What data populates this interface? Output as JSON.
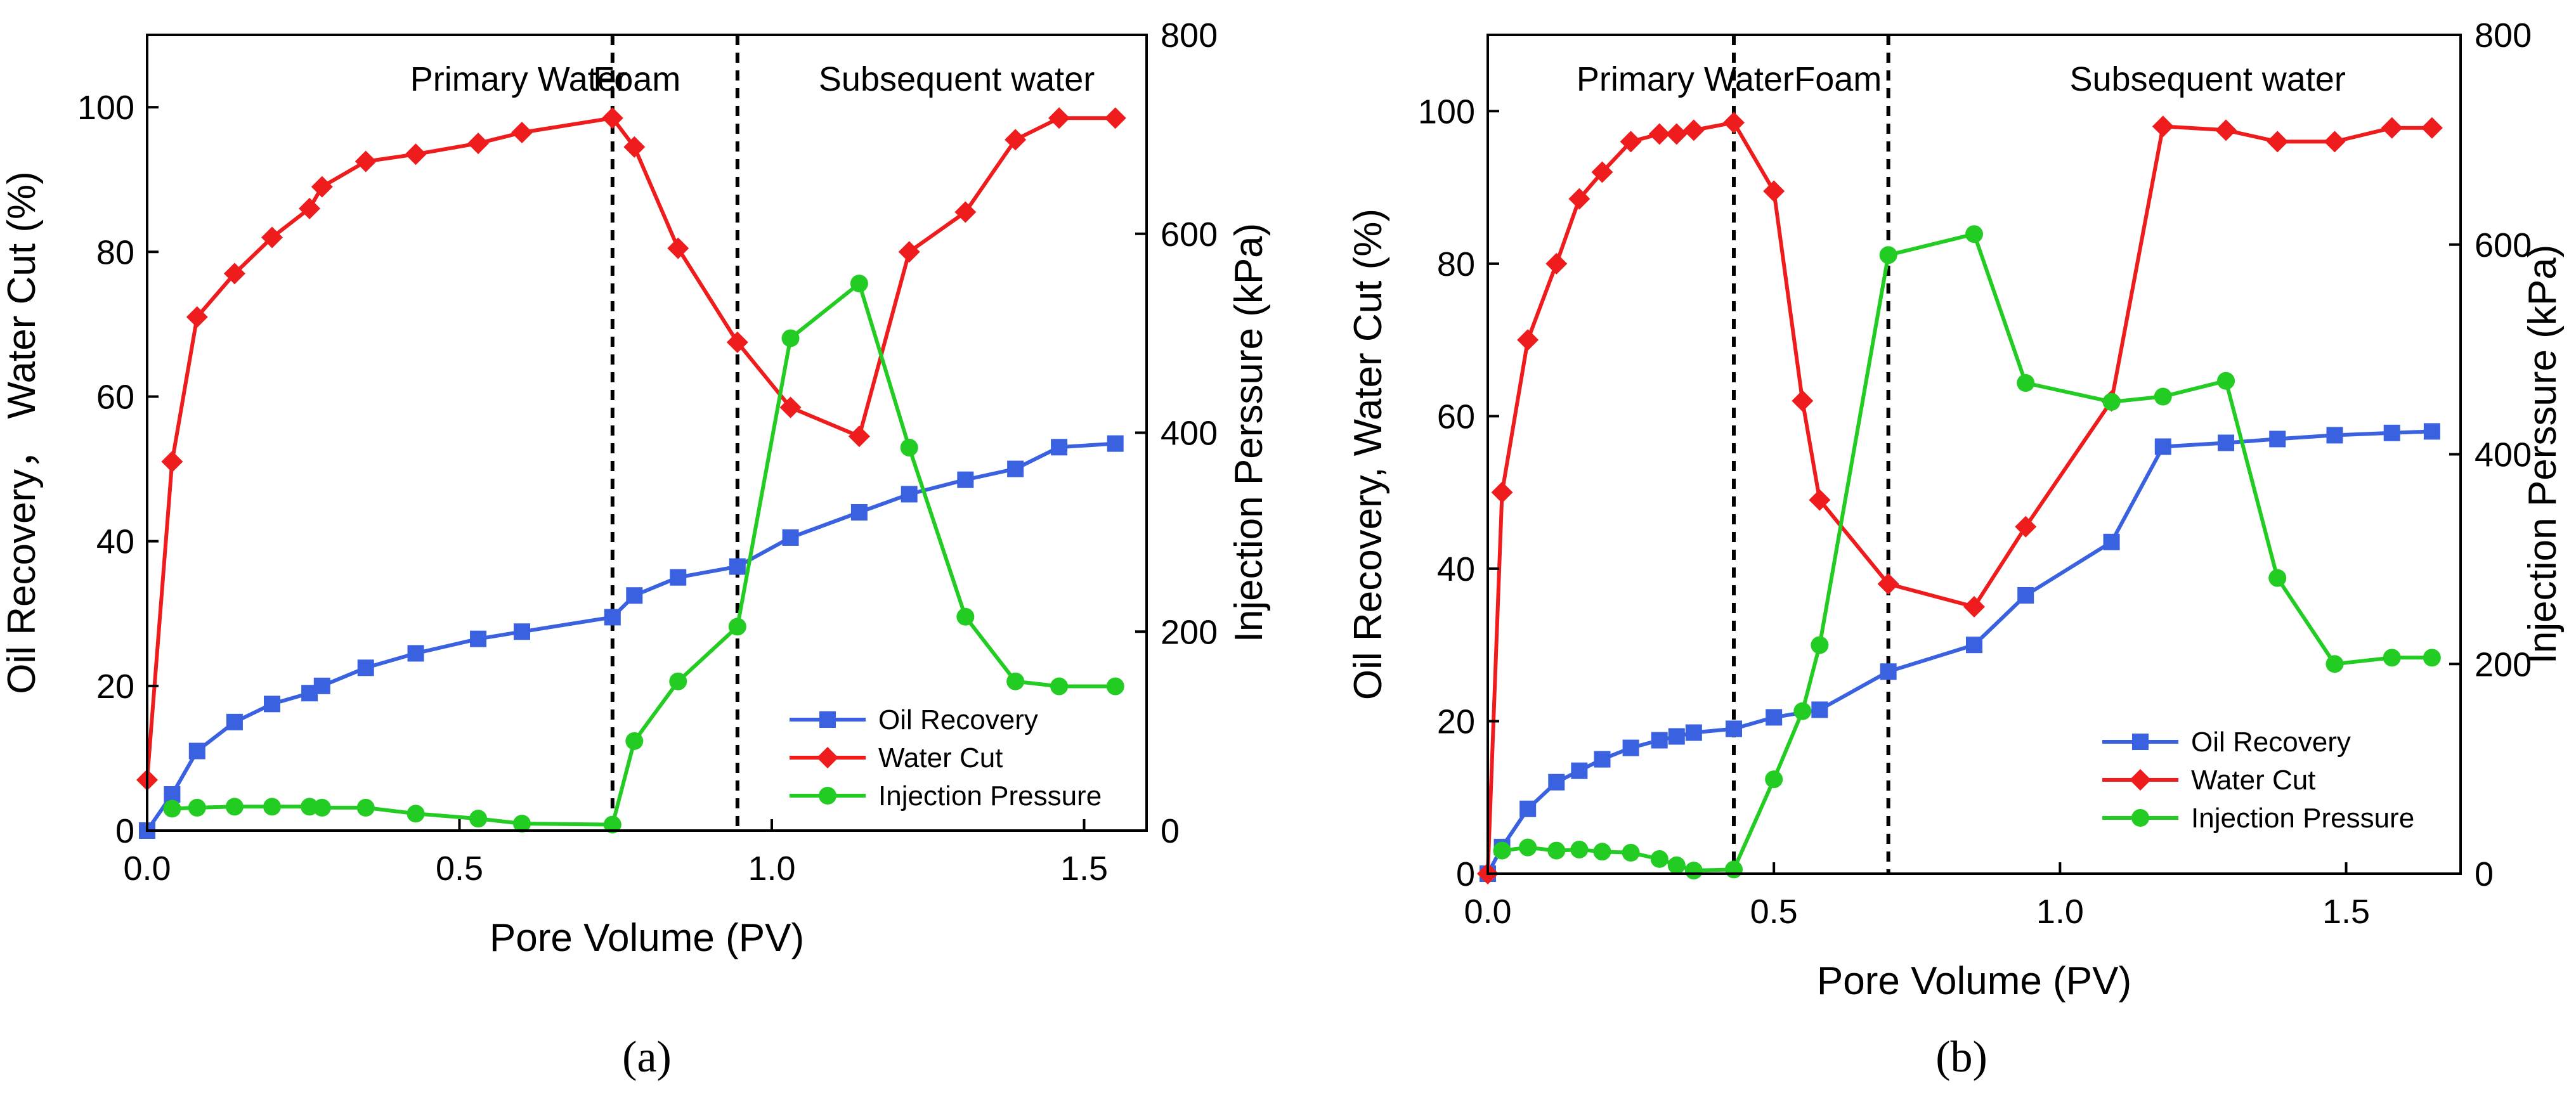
{
  "figure": {
    "panels": [
      "(a)",
      "(b)"
    ],
    "series_colors": {
      "oil_recovery": "#3a62e0",
      "water_cut": "#ee1c1c",
      "injection_pressure": "#22cc22"
    }
  },
  "chart_data": [
    {
      "type": "line",
      "caption": "(a)",
      "xlabel": "Pore Volume (PV)",
      "ylabel": "Oil Recovery， Water Cut (%)",
      "y2label": "Injection Perssure (kPa)",
      "xlim": [
        0,
        1.6
      ],
      "ylim": [
        0,
        110
      ],
      "y2lim": [
        0,
        800
      ],
      "xticks": [
        0,
        0.5,
        1.0,
        1.5
      ],
      "xticklabels": [
        "0.0",
        "0.5",
        "1.0",
        "1.5"
      ],
      "yticks": [
        0,
        20,
        40,
        60,
        80,
        100
      ],
      "yticklabels": [
        "0",
        "20",
        "40",
        "60",
        "80",
        "100"
      ],
      "y2ticks": [
        0,
        200,
        400,
        600,
        800
      ],
      "y2ticklabels": [
        "0",
        "200",
        "400",
        "600",
        "800"
      ],
      "phase_boundaries": [
        0.745,
        0.945
      ],
      "phases": [
        {
          "label": "Primary Water",
          "start": 0,
          "end": 0.745
        },
        {
          "label": "Foam",
          "start": 0.745,
          "end": 0.945
        },
        {
          "label": "Subsequent water",
          "start": 0.945,
          "end": 1.6
        }
      ],
      "legend_position": "bottom-right",
      "series": [
        {
          "name": "Oil Recovery",
          "key": "oil_recovery",
          "axis": "left",
          "marker": "square",
          "x": [
            0,
            0.04,
            0.08,
            0.14,
            0.2,
            0.26,
            0.28,
            0.35,
            0.43,
            0.53,
            0.6,
            0.745,
            0.78,
            0.85,
            0.945,
            1.03,
            1.14,
            1.22,
            1.31,
            1.39,
            1.46,
            1.55
          ],
          "y": [
            0,
            5,
            11,
            15,
            17.5,
            19,
            20,
            22.5,
            24.5,
            26.5,
            27.5,
            29.5,
            32.5,
            35,
            36.5,
            40.5,
            44,
            46.5,
            48.5,
            50,
            53,
            53.5
          ]
        },
        {
          "name": "Water Cut",
          "key": "water_cut",
          "axis": "left",
          "marker": "diamond",
          "x": [
            0,
            0.04,
            0.08,
            0.14,
            0.2,
            0.26,
            0.28,
            0.35,
            0.43,
            0.53,
            0.6,
            0.745,
            0.78,
            0.85,
            0.945,
            1.03,
            1.14,
            1.22,
            1.31,
            1.39,
            1.46,
            1.55
          ],
          "y": [
            7,
            51,
            71,
            77,
            82,
            86,
            89,
            92.5,
            93.5,
            95,
            96.5,
            98.5,
            94.5,
            80.5,
            67.5,
            58.5,
            54.5,
            80,
            85.5,
            95.5,
            98.5,
            98.5
          ]
        },
        {
          "name": "Injection Pressure",
          "key": "injection_pressure",
          "axis": "right",
          "marker": "circle",
          "x": [
            0.04,
            0.08,
            0.14,
            0.2,
            0.26,
            0.28,
            0.35,
            0.43,
            0.53,
            0.6,
            0.745,
            0.78,
            0.85,
            0.945,
            1.03,
            1.14,
            1.22,
            1.31,
            1.39,
            1.46,
            1.55
          ],
          "y": [
            22,
            23,
            24,
            24,
            24,
            23,
            23,
            17,
            12,
            7,
            6,
            90,
            150,
            205,
            495,
            550,
            385,
            215,
            150,
            145,
            145
          ]
        }
      ]
    },
    {
      "type": "line",
      "caption": "(b)",
      "xlabel": "Pore Volume (PV)",
      "ylabel": "Oil Recovery, Water Cut (%)",
      "y2label": "Injection Perssure (kPa)",
      "xlim": [
        0,
        1.7
      ],
      "ylim": [
        0,
        110
      ],
      "y2lim": [
        0,
        800
      ],
      "xticks": [
        0,
        0.5,
        1.0,
        1.5
      ],
      "xticklabels": [
        "0.0",
        "0.5",
        "1.0",
        "1.5"
      ],
      "yticks": [
        0,
        20,
        40,
        60,
        80,
        100
      ],
      "yticklabels": [
        "0",
        "20",
        "40",
        "60",
        "80",
        "100"
      ],
      "y2ticks": [
        0,
        200,
        400,
        600,
        800
      ],
      "y2ticklabels": [
        "0",
        "200",
        "400",
        "600",
        "800"
      ],
      "phase_boundaries": [
        0.43,
        0.7
      ],
      "phases": [
        {
          "label": "Primary Water",
          "start": 0,
          "end": 0.43
        },
        {
          "label": "Foam",
          "start": 0.43,
          "end": 0.7
        },
        {
          "label": "Subsequent water",
          "start": 0.7,
          "end": 1.7
        }
      ],
      "legend_position": "bottom-right",
      "series": [
        {
          "name": "Oil Recovery",
          "key": "oil_recovery",
          "axis": "left",
          "marker": "square",
          "x": [
            0,
            0.025,
            0.07,
            0.12,
            0.16,
            0.2,
            0.25,
            0.3,
            0.33,
            0.36,
            0.43,
            0.5,
            0.58,
            0.7,
            0.85,
            0.94,
            1.09,
            1.18,
            1.29,
            1.38,
            1.48,
            1.58,
            1.65
          ],
          "y": [
            0,
            3.5,
            8.5,
            12,
            13.5,
            15,
            16.5,
            17.5,
            18,
            18.5,
            19,
            20.5,
            21.5,
            26.5,
            30,
            36.5,
            43.5,
            56,
            56.5,
            57,
            57.5,
            57.8,
            58
          ]
        },
        {
          "name": "Water Cut",
          "key": "water_cut",
          "axis": "left",
          "marker": "diamond",
          "x": [
            0,
            0.025,
            0.07,
            0.12,
            0.16,
            0.2,
            0.25,
            0.3,
            0.33,
            0.36,
            0.43,
            0.5,
            0.55,
            0.58,
            0.7,
            0.85,
            0.94,
            1.09,
            1.18,
            1.29,
            1.38,
            1.48,
            1.58,
            1.65
          ],
          "y": [
            0,
            50,
            70,
            80,
            88.5,
            92,
            96,
            97,
            97,
            97.5,
            98.5,
            89.5,
            62,
            49,
            38,
            35,
            45.5,
            62,
            98,
            97.5,
            96,
            96,
            97.8,
            97.8
          ]
        },
        {
          "name": "Injection Pressure",
          "key": "injection_pressure",
          "axis": "right",
          "marker": "circle",
          "x": [
            0.025,
            0.07,
            0.12,
            0.16,
            0.2,
            0.25,
            0.3,
            0.33,
            0.36,
            0.43,
            0.5,
            0.55,
            0.58,
            0.7,
            0.85,
            0.94,
            1.09,
            1.18,
            1.29,
            1.38,
            1.48,
            1.58,
            1.65
          ],
          "y": [
            22,
            25,
            22,
            23,
            21,
            20,
            14,
            8,
            3,
            4,
            90,
            155,
            218,
            590,
            610,
            468,
            450,
            455,
            470,
            282,
            200,
            206,
            206
          ]
        }
      ]
    }
  ]
}
